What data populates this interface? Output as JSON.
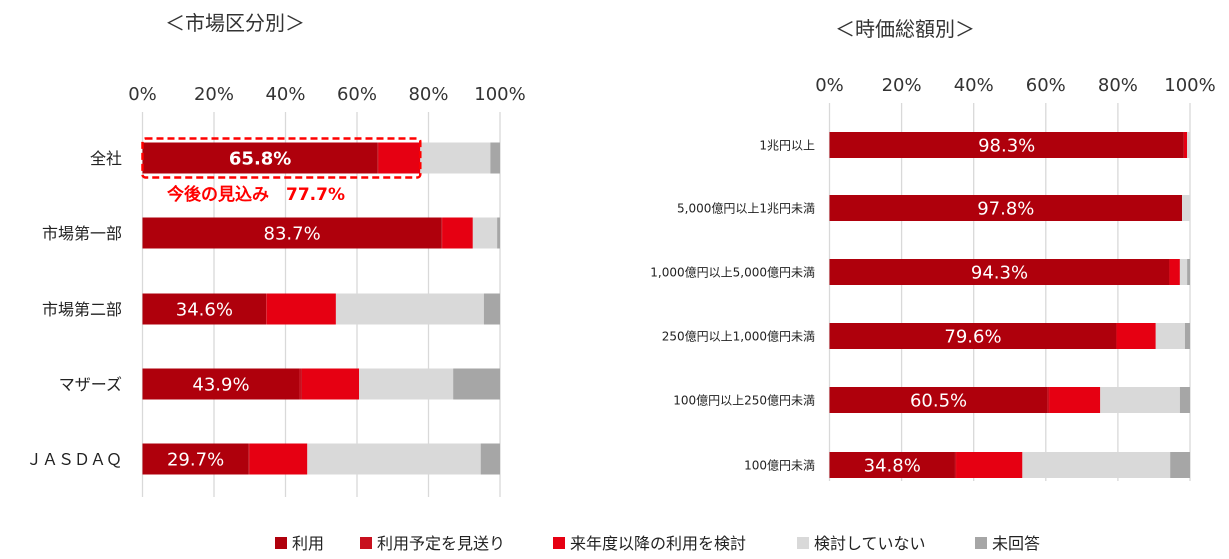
{
  "colors": {
    "利用": "#af000c",
    "利用予定を見送り": "#c8101e",
    "来年度以降の利用を検討": "#e60012",
    "検討していない": "#d9d9d9",
    "未回答": "#a6a6a6",
    "annotation": "#ff0000",
    "grid": "#d9d9d9"
  },
  "legend": [
    "利用",
    "利用予定を見送り",
    "来年度以降の利用を検討",
    "検討していない",
    "未回答"
  ],
  "chart_data": [
    {
      "type": "bar",
      "orientation": "horizontal-stacked-100",
      "title": "＜市場区分別＞",
      "xlim": [
        0,
        100
      ],
      "xticks": [
        "0%",
        "20%",
        "40%",
        "60%",
        "80%",
        "100%"
      ],
      "grid": true,
      "categories": [
        "全社",
        "市場第一部",
        "市場第二部",
        "マザーズ",
        "ＪＡＳＤＡＱ"
      ],
      "series": [
        {
          "name": "利用",
          "values": [
            65.8,
            83.7,
            34.6,
            43.9,
            29.7
          ]
        },
        {
          "name": "利用予定を見送り",
          "values": [
            0.2,
            0.1,
            0.1,
            0.7,
            0.2
          ]
        },
        {
          "name": "来年度以降の利用を検討",
          "values": [
            11.7,
            8.6,
            19.4,
            16.0,
            16.2
          ]
        },
        {
          "name": "検討していない",
          "values": [
            19.6,
            6.8,
            41.4,
            26.3,
            48.5
          ]
        },
        {
          "name": "未回答",
          "values": [
            2.7,
            0.8,
            4.5,
            13.1,
            5.4
          ]
        }
      ],
      "data_labels": [
        "65.8%",
        "83.7%",
        "34.6%",
        "43.9%",
        "29.7%"
      ],
      "annotation": {
        "text": "今後の見込み　77.7%",
        "value": 77.7,
        "category": "全社"
      }
    },
    {
      "type": "bar",
      "orientation": "horizontal-stacked-100",
      "title": "＜時価総額別＞",
      "xlim": [
        0,
        100
      ],
      "xticks": [
        "0%",
        "20%",
        "40%",
        "60%",
        "80%",
        "100%"
      ],
      "grid": true,
      "categories": [
        "1兆円以上",
        "5,000億円以上1兆円未満",
        "1,000億円以上5,000億円未満",
        "250億円以上1,000億円未満",
        "100億円以上250億円未満",
        "100億円未満"
      ],
      "series": [
        {
          "name": "利用",
          "values": [
            98.3,
            97.8,
            94.3,
            79.6,
            60.5,
            34.8
          ]
        },
        {
          "name": "利用予定を見送り",
          "values": [
            0,
            0,
            0,
            0,
            0.4,
            0.3
          ]
        },
        {
          "name": "来年度以降の利用を検討",
          "values": [
            0.9,
            0,
            2.9,
            10.9,
            14.2,
            18.4
          ]
        },
        {
          "name": "検討していない",
          "values": [
            0.8,
            2.2,
            2.0,
            8.1,
            22.1,
            41.0
          ]
        },
        {
          "name": "未回答",
          "values": [
            0,
            0,
            0.8,
            1.4,
            2.8,
            5.5
          ]
        }
      ],
      "data_labels": [
        "98.3%",
        "97.8%",
        "94.3%",
        "79.6%",
        "60.5%",
        "34.8%"
      ]
    }
  ]
}
